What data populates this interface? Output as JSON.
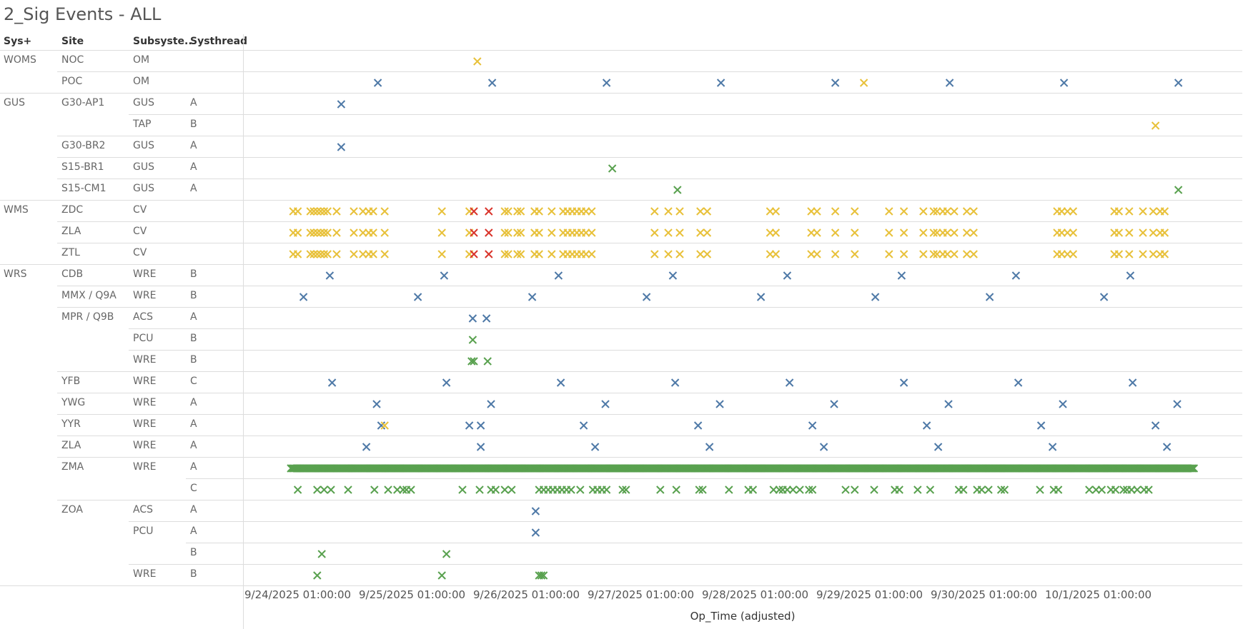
{
  "title": "2_Sig Events - ALL",
  "headers": [
    "Sys+",
    "Site",
    "Subsyste..",
    "Systhread"
  ],
  "rows": [
    {
      "sys": "WOMS",
      "site": "NOC",
      "sub": "OM",
      "thread": ""
    },
    {
      "sys": "",
      "site": "POC",
      "sub": "OM",
      "thread": ""
    },
    {
      "sys": "GUS",
      "site": "G30-AP1",
      "sub": "GUS",
      "thread": "A"
    },
    {
      "sys": "",
      "site": "",
      "sub": "TAP",
      "thread": "B"
    },
    {
      "sys": "",
      "site": "G30-BR2",
      "sub": "GUS",
      "thread": "A"
    },
    {
      "sys": "",
      "site": "S15-BR1",
      "sub": "GUS",
      "thread": "A"
    },
    {
      "sys": "",
      "site": "S15-CM1",
      "sub": "GUS",
      "thread": "A"
    },
    {
      "sys": "WMS",
      "site": "ZDC",
      "sub": "CV",
      "thread": ""
    },
    {
      "sys": "",
      "site": "ZLA",
      "sub": "CV",
      "thread": ""
    },
    {
      "sys": "",
      "site": "ZTL",
      "sub": "CV",
      "thread": ""
    },
    {
      "sys": "WRS",
      "site": "CDB",
      "sub": "WRE",
      "thread": "B"
    },
    {
      "sys": "",
      "site": "MMX / Q9A",
      "sub": "WRE",
      "thread": "B"
    },
    {
      "sys": "",
      "site": "MPR / Q9B",
      "sub": "ACS",
      "thread": "A"
    },
    {
      "sys": "",
      "site": "",
      "sub": "PCU",
      "thread": "B"
    },
    {
      "sys": "",
      "site": "",
      "sub": "WRE",
      "thread": "B"
    },
    {
      "sys": "",
      "site": "YFB",
      "sub": "WRE",
      "thread": "C"
    },
    {
      "sys": "",
      "site": "YWG",
      "sub": "WRE",
      "thread": "A"
    },
    {
      "sys": "",
      "site": "YYR",
      "sub": "WRE",
      "thread": "A"
    },
    {
      "sys": "",
      "site": "ZLA",
      "sub": "WRE",
      "thread": "A"
    },
    {
      "sys": "",
      "site": "ZMA",
      "sub": "WRE",
      "thread": "A"
    },
    {
      "sys": "",
      "site": "",
      "sub": "",
      "thread": "C"
    },
    {
      "sys": "",
      "site": "ZOA",
      "sub": "ACS",
      "thread": "A"
    },
    {
      "sys": "",
      "site": "",
      "sub": "PCU",
      "thread": "A"
    },
    {
      "sys": "",
      "site": "",
      "sub": "",
      "thread": "B"
    },
    {
      "sys": "",
      "site": "",
      "sub": "WRE",
      "thread": "B"
    }
  ],
  "chart_data": {
    "type": "scatter",
    "xlabel": "Op_Time (adjusted)",
    "x_ticks": [
      "9/24/2025 01:00:00",
      "9/25/2025 01:00:00",
      "9/26/2025 01:00:00",
      "9/27/2025 01:00:00",
      "9/28/2025 01:00:00",
      "9/29/2025 01:00:00",
      "9/30/2025 01:00:00",
      "10/1/2025 01:00:00"
    ],
    "x_unit": "days after 9/24/2025 01:00:00",
    "colors": {
      "blue": "#4e79a7",
      "yellow": "#e8c13a",
      "red": "#d9342b",
      "green": "#59a14f"
    },
    "series": [
      {
        "row": 0,
        "color": "yellow",
        "x": [
          2.03
        ]
      },
      {
        "row": 1,
        "color": "blue",
        "x": [
          1.16,
          2.16,
          3.16,
          4.16,
          5.16,
          6.16,
          7.16,
          8.16
        ]
      },
      {
        "row": 1,
        "color": "yellow",
        "x": [
          5.41
        ]
      },
      {
        "row": 2,
        "color": "blue",
        "x": [
          0.84
        ]
      },
      {
        "row": 3,
        "color": "yellow",
        "x": [
          7.96
        ]
      },
      {
        "row": 4,
        "color": "blue",
        "x": [
          0.84
        ]
      },
      {
        "row": 5,
        "color": "green",
        "x": [
          3.21
        ]
      },
      {
        "row": 6,
        "color": "green",
        "x": [
          3.78,
          8.16
        ]
      },
      {
        "row": 7,
        "color": "yellow",
        "x": [
          0.42,
          0.46,
          0.57,
          0.6,
          0.63,
          0.66,
          0.69,
          0.72,
          0.8,
          0.95,
          1.03,
          1.08,
          1.12,
          1.22,
          1.72,
          1.96,
          2.27,
          2.3,
          2.38,
          2.41,
          2.53,
          2.57,
          2.68,
          2.78,
          2.82,
          2.86,
          2.9,
          2.94,
          2.98,
          3.03,
          3.58,
          3.7,
          3.8,
          3.98,
          4.04,
          4.59,
          4.64,
          4.95,
          5.0,
          5.16,
          5.33,
          5.63,
          5.76,
          5.93,
          6.02,
          6.05,
          6.1,
          6.14,
          6.2,
          6.31,
          6.37,
          7.1,
          7.14,
          7.19,
          7.24,
          7.6,
          7.64,
          7.73,
          7.85,
          7.94,
          8.0,
          8.04
        ]
      },
      {
        "row": 7,
        "color": "red",
        "x": [
          2.0,
          2.13
        ]
      },
      {
        "row": 8,
        "color": "yellow",
        "x": [
          0.42,
          0.46,
          0.57,
          0.6,
          0.63,
          0.66,
          0.69,
          0.72,
          0.8,
          0.95,
          1.03,
          1.08,
          1.12,
          1.22,
          1.72,
          1.96,
          2.27,
          2.3,
          2.38,
          2.41,
          2.53,
          2.57,
          2.68,
          2.78,
          2.82,
          2.86,
          2.9,
          2.94,
          2.98,
          3.03,
          3.58,
          3.7,
          3.8,
          3.98,
          4.04,
          4.59,
          4.64,
          4.95,
          5.0,
          5.16,
          5.33,
          5.63,
          5.76,
          5.93,
          6.02,
          6.05,
          6.1,
          6.14,
          6.2,
          6.31,
          6.37,
          7.1,
          7.14,
          7.19,
          7.24,
          7.6,
          7.64,
          7.73,
          7.85,
          7.94,
          8.0,
          8.04
        ]
      },
      {
        "row": 8,
        "color": "red",
        "x": [
          2.0,
          2.13
        ]
      },
      {
        "row": 9,
        "color": "yellow",
        "x": [
          0.42,
          0.46,
          0.57,
          0.6,
          0.63,
          0.66,
          0.69,
          0.72,
          0.8,
          0.95,
          1.03,
          1.08,
          1.12,
          1.22,
          1.72,
          1.96,
          2.27,
          2.3,
          2.38,
          2.41,
          2.53,
          2.57,
          2.68,
          2.78,
          2.82,
          2.86,
          2.9,
          2.94,
          2.98,
          3.03,
          3.58,
          3.7,
          3.8,
          3.98,
          4.04,
          4.59,
          4.64,
          4.95,
          5.0,
          5.16,
          5.33,
          5.63,
          5.76,
          5.93,
          6.02,
          6.05,
          6.1,
          6.14,
          6.2,
          6.31,
          6.37,
          7.1,
          7.14,
          7.19,
          7.24,
          7.6,
          7.64,
          7.73,
          7.85,
          7.94,
          8.0,
          8.04
        ]
      },
      {
        "row": 9,
        "color": "red",
        "x": [
          2.0,
          2.13
        ]
      },
      {
        "row": 10,
        "color": "blue",
        "x": [
          0.74,
          1.74,
          2.74,
          3.74,
          4.74,
          5.74,
          6.74,
          7.74
        ]
      },
      {
        "row": 11,
        "color": "blue",
        "x": [
          0.51,
          1.51,
          2.51,
          3.51,
          4.51,
          5.51,
          6.51,
          7.51
        ]
      },
      {
        "row": 12,
        "color": "blue",
        "x": [
          1.99,
          2.11
        ]
      },
      {
        "row": 13,
        "color": "green",
        "x": [
          1.99
        ]
      },
      {
        "row": 14,
        "color": "green",
        "x": [
          1.98,
          2.0,
          2.12
        ]
      },
      {
        "row": 15,
        "color": "blue",
        "x": [
          0.76,
          1.76,
          2.76,
          3.76,
          4.76,
          5.76,
          6.76,
          7.76
        ]
      },
      {
        "row": 16,
        "color": "blue",
        "x": [
          1.15,
          2.15,
          3.15,
          4.15,
          5.15,
          6.15,
          7.15,
          8.15
        ]
      },
      {
        "row": 17,
        "color": "blue",
        "x": [
          1.19,
          1.96,
          2.06,
          2.96,
          3.96,
          4.96,
          5.96,
          6.96,
          7.96
        ]
      },
      {
        "row": 17,
        "color": "yellow",
        "x": [
          1.22
        ]
      },
      {
        "row": 18,
        "color": "blue",
        "x": [
          1.06,
          2.06,
          3.06,
          4.06,
          5.06,
          6.06,
          7.06,
          8.06
        ]
      },
      {
        "row": 19,
        "color": "green",
        "dense": true,
        "x_range": [
          0.4,
          8.3
        ],
        "step": 0.012
      },
      {
        "row": 20,
        "color": "green",
        "x": [
          0.46,
          0.63,
          0.69,
          0.75,
          0.9,
          1.13,
          1.25,
          1.33,
          1.38,
          1.41,
          1.45,
          1.9,
          2.05,
          2.15,
          2.19,
          2.27,
          2.33,
          2.57,
          2.61,
          2.65,
          2.69,
          2.73,
          2.77,
          2.81,
          2.85,
          2.93,
          3.04,
          3.08,
          3.12,
          3.16,
          3.3,
          3.33,
          3.63,
          3.77,
          3.97,
          4.0,
          4.23,
          4.4,
          4.44,
          4.62,
          4.67,
          4.7,
          4.74,
          4.79,
          4.85,
          4.93,
          4.96,
          5.25,
          5.33,
          5.5,
          5.68,
          5.72,
          5.88,
          5.99,
          6.24,
          6.28,
          6.4,
          6.44,
          6.5,
          6.61,
          6.64,
          6.95,
          7.07,
          7.11,
          7.38,
          7.44,
          7.49,
          7.57,
          7.61,
          7.68,
          7.71,
          7.75,
          7.8,
          7.86,
          7.9
        ]
      },
      {
        "row": 21,
        "color": "blue",
        "x": [
          2.54
        ]
      },
      {
        "row": 22,
        "color": "blue",
        "x": [
          2.54
        ]
      },
      {
        "row": 23,
        "color": "green",
        "x": [
          0.67,
          1.76
        ]
      },
      {
        "row": 24,
        "color": "green",
        "x": [
          0.63,
          1.72,
          2.57,
          2.59,
          2.61
        ]
      }
    ]
  }
}
